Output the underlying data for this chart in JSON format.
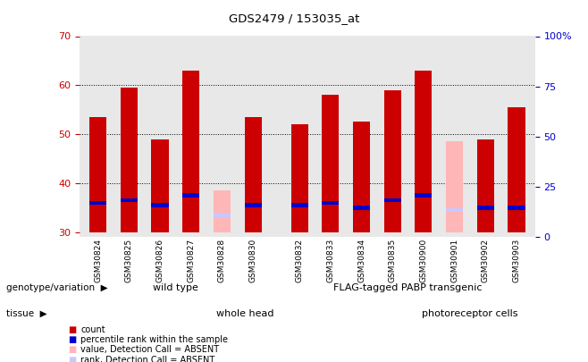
{
  "title": "GDS2479 / 153035_at",
  "samples": [
    "GSM30824",
    "GSM30825",
    "GSM30826",
    "GSM30827",
    "GSM30828",
    "GSM30830",
    "GSM30832",
    "GSM30833",
    "GSM30834",
    "GSM30835",
    "GSM30900",
    "GSM30901",
    "GSM30902",
    "GSM30903"
  ],
  "count_values": [
    53.5,
    59.5,
    49.0,
    63.0,
    null,
    53.5,
    52.0,
    58.0,
    52.5,
    59.0,
    63.0,
    null,
    49.0,
    55.5
  ],
  "percentile_values": [
    36.0,
    36.5,
    35.5,
    37.5,
    null,
    35.5,
    35.5,
    36.0,
    35.0,
    36.5,
    37.5,
    null,
    35.0,
    35.0
  ],
  "absent_value_values": [
    null,
    null,
    null,
    null,
    38.5,
    null,
    null,
    null,
    null,
    null,
    null,
    48.5,
    null,
    null
  ],
  "absent_rank_values": [
    null,
    null,
    null,
    null,
    33.5,
    null,
    null,
    null,
    null,
    null,
    null,
    34.5,
    null,
    null
  ],
  "ylim_left": [
    29,
    70
  ],
  "ylim_right": [
    0,
    100
  ],
  "yticks_left": [
    30,
    40,
    50,
    60,
    70
  ],
  "yticks_right": [
    0,
    25,
    50,
    75,
    100
  ],
  "bar_bottom": 30,
  "count_color": "#cc0000",
  "percentile_color": "#0000cc",
  "absent_value_color": "#ffb6b6",
  "absent_rank_color": "#c8c8ff",
  "genotype_wildtype_label": "wild type",
  "genotype_transgenic_label": "FLAG-tagged PABP transgenic",
  "tissue_wholehead_label": "whole head",
  "tissue_photoreceptor_label": "photoreceptor cells",
  "genotype_wt_color": "#aaffaa",
  "genotype_transgenic_color": "#44dd44",
  "tissue_wholehead_color": "#ffaaff",
  "tissue_photoreceptor_color": "#cc44cc",
  "legend_items": [
    {
      "label": "count",
      "color": "#cc0000"
    },
    {
      "label": "percentile rank within the sample",
      "color": "#0000cc"
    },
    {
      "label": "value, Detection Call = ABSENT",
      "color": "#ffb6b6"
    },
    {
      "label": "rank, Detection Call = ABSENT",
      "color": "#c8c8ff"
    }
  ]
}
